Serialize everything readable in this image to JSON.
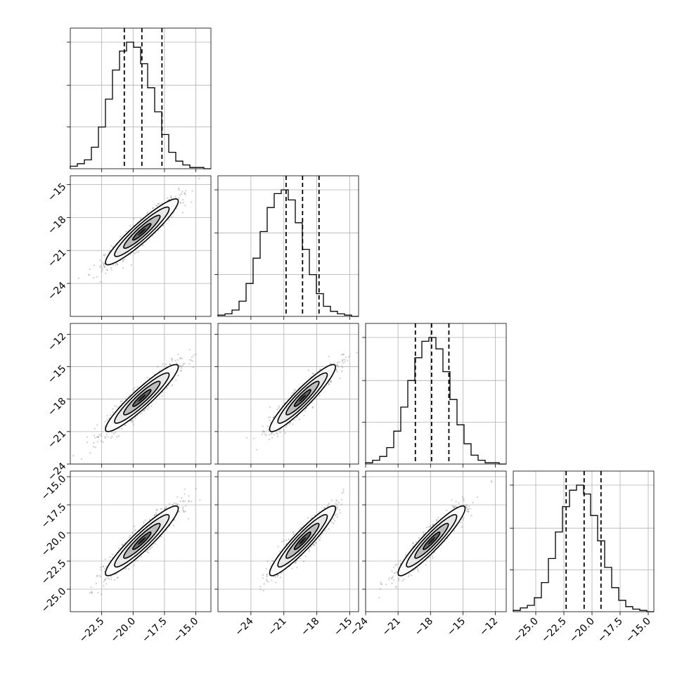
{
  "chart_data": {
    "type": "corner",
    "parameters": 4,
    "grid": true,
    "histogram": {
      "bins": 20,
      "counts": [
        [
          0.02,
          0.04,
          0.07,
          0.17,
          0.33,
          0.55,
          0.78,
          0.93,
          1.0,
          0.96,
          0.83,
          0.64,
          0.45,
          0.27,
          0.13,
          0.06,
          0.03,
          0.01,
          0.01,
          0.0
        ],
        [
          0.01,
          0.02,
          0.05,
          0.12,
          0.26,
          0.46,
          0.67,
          0.86,
          0.97,
          1.0,
          0.92,
          0.74,
          0.53,
          0.33,
          0.18,
          0.08,
          0.04,
          0.02,
          0.01,
          0.0
        ],
        [
          0.01,
          0.03,
          0.06,
          0.13,
          0.26,
          0.45,
          0.66,
          0.84,
          0.97,
          1.0,
          0.91,
          0.73,
          0.51,
          0.31,
          0.16,
          0.07,
          0.03,
          0.01,
          0.01,
          0.0
        ],
        [
          0.01,
          0.03,
          0.05,
          0.11,
          0.23,
          0.42,
          0.63,
          0.83,
          0.96,
          1.0,
          0.93,
          0.76,
          0.56,
          0.35,
          0.19,
          0.09,
          0.04,
          0.02,
          0.01,
          0.0
        ]
      ],
      "quantiles": [
        [
          -20.7,
          -19.3,
          -17.7
        ],
        [
          -20.8,
          -19.3,
          -17.8
        ],
        [
          -19.4,
          -17.9,
          -16.3
        ],
        [
          -22.3,
          -20.7,
          -19.2
        ]
      ]
    },
    "ranges": [
      [
        -25.0,
        -13.8
      ],
      [
        -27.0,
        -14.2
      ],
      [
        -24.0,
        -11.0
      ],
      [
        -27.0,
        -14.5
      ]
    ],
    "means": [
      -19.3,
      -19.3,
      -17.9,
      -20.7
    ],
    "stds": [
      1.45,
      1.5,
      1.55,
      1.55
    ],
    "correlation": 0.93,
    "x_tick_values": [
      [
        -22.5,
        -20.0,
        -17.5,
        -15.0
      ],
      [
        -24,
        -21,
        -18,
        -15
      ],
      [
        -24,
        -21,
        -18,
        -15,
        -12
      ],
      [
        -25.0,
        -22.5,
        -20.0,
        -17.5,
        -15.0
      ]
    ],
    "x_tick_labels": [
      [
        "−22.5",
        "−20.0",
        "−17.5",
        "−15.0"
      ],
      [
        "−24",
        "−21",
        "−18",
        "−15"
      ],
      [
        "−24",
        "−21",
        "−18",
        "−15",
        "−12"
      ],
      [
        "−25.0",
        "−22.5",
        "−20.0",
        "−17.5",
        "−15.0"
      ]
    ],
    "y_tick_values": [
      [],
      [
        -15,
        -18,
        -21,
        -24
      ],
      [
        -12,
        -15,
        -18,
        -21,
        -24
      ],
      [
        -15.0,
        -17.5,
        -20.0,
        -22.5,
        -25.0
      ]
    ],
    "y_tick_labels": [
      [],
      [
        "−15",
        "−18",
        "−21",
        "−24"
      ],
      [
        "−12",
        "−15",
        "−18",
        "−21",
        "−24"
      ],
      [
        "−15.0",
        "−17.5",
        "−20.0",
        "−22.5",
        "−25.0"
      ]
    ]
  }
}
